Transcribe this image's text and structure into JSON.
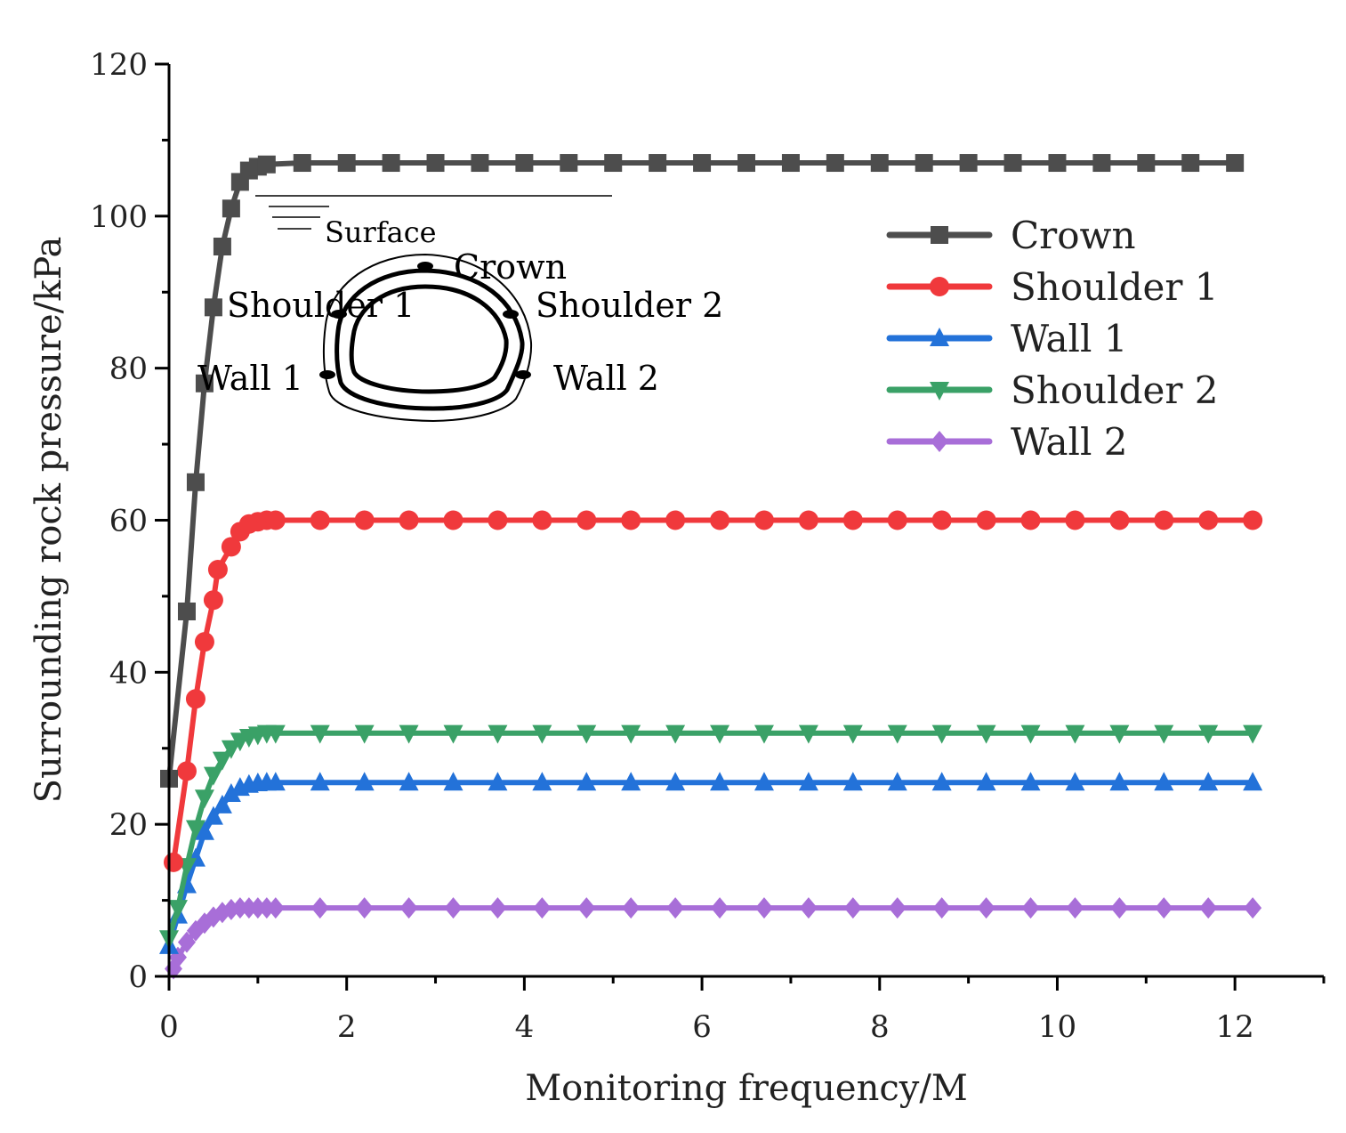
{
  "chart_data": {
    "type": "line",
    "title": "",
    "xlabel": "Monitoring frequency/M",
    "ylabel": "Surrounding rock pressure/kPa",
    "xlim": [
      0,
      13
    ],
    "ylim": [
      0,
      120
    ],
    "xticks": [
      0,
      2,
      4,
      6,
      8,
      10,
      12
    ],
    "yticks": [
      0,
      20,
      40,
      60,
      80,
      100,
      120
    ],
    "xtick_labels": [
      "0",
      "2",
      "4",
      "6",
      "8",
      "10",
      "12"
    ],
    "ytick_labels": [
      "0",
      "20",
      "40",
      "60",
      "80",
      "100",
      "120"
    ],
    "legend_position": "top-right",
    "series": [
      {
        "name": "Crown",
        "color": "#4d4d4d",
        "marker": "square",
        "x": [
          0,
          0.2,
          0.3,
          0.4,
          0.5,
          0.6,
          0.7,
          0.8,
          0.9,
          1.0,
          1.1,
          1.5,
          2.0,
          2.5,
          3.0,
          3.5,
          4.0,
          4.5,
          5.0,
          5.5,
          6.0,
          6.5,
          7.0,
          7.5,
          8.0,
          8.5,
          9.0,
          9.5,
          10.0,
          10.5,
          11.0,
          11.5,
          12.0
        ],
        "y": [
          26,
          48,
          65,
          78,
          88,
          96,
          101,
          104.5,
          106,
          106.5,
          106.8,
          107,
          107,
          107,
          107,
          107,
          107,
          107,
          107,
          107,
          107,
          107,
          107,
          107,
          107,
          107,
          107,
          107,
          107,
          107,
          107,
          107,
          107
        ]
      },
      {
        "name": "Shoulder 1",
        "color": "#f0393c",
        "marker": "circle",
        "x": [
          0.05,
          0.2,
          0.3,
          0.4,
          0.5,
          0.55,
          0.7,
          0.8,
          0.9,
          1.0,
          1.1,
          1.2,
          1.7,
          2.2,
          2.7,
          3.2,
          3.7,
          4.2,
          4.7,
          5.2,
          5.7,
          6.2,
          6.7,
          7.2,
          7.7,
          8.2,
          8.7,
          9.2,
          9.7,
          10.2,
          10.7,
          11.2,
          11.7,
          12.2
        ],
        "y": [
          15,
          27,
          36.5,
          44,
          49.5,
          53.5,
          56.5,
          58.5,
          59.5,
          59.8,
          60,
          60,
          60,
          60,
          60,
          60,
          60,
          60,
          60,
          60,
          60,
          60,
          60,
          60,
          60,
          60,
          60,
          60,
          60,
          60,
          60,
          60,
          60,
          60
        ]
      },
      {
        "name": "Wall 1",
        "color": "#2372d9",
        "marker": "triangle-up",
        "x": [
          0,
          0.1,
          0.2,
          0.3,
          0.4,
          0.5,
          0.6,
          0.7,
          0.8,
          0.9,
          1.0,
          1.1,
          1.2,
          1.7,
          2.2,
          2.7,
          3.2,
          3.7,
          4.2,
          4.7,
          5.2,
          5.7,
          6.2,
          6.7,
          7.2,
          7.7,
          8.2,
          8.7,
          9.2,
          9.7,
          10.2,
          10.7,
          11.2,
          11.7,
          12.2
        ],
        "y": [
          4,
          8,
          12,
          15.5,
          19,
          21,
          22.5,
          24,
          24.8,
          25.2,
          25.4,
          25.5,
          25.5,
          25.5,
          25.5,
          25.5,
          25.5,
          25.5,
          25.5,
          25.5,
          25.5,
          25.5,
          25.5,
          25.5,
          25.5,
          25.5,
          25.5,
          25.5,
          25.5,
          25.5,
          25.5,
          25.5,
          25.5,
          25.5,
          25.5
        ]
      },
      {
        "name": "Shoulder 2",
        "color": "#3aa167",
        "marker": "triangle-down",
        "x": [
          0,
          0.1,
          0.2,
          0.3,
          0.4,
          0.5,
          0.6,
          0.7,
          0.8,
          0.9,
          1.0,
          1.1,
          1.2,
          1.7,
          2.2,
          2.7,
          3.2,
          3.7,
          4.2,
          4.7,
          5.2,
          5.7,
          6.2,
          6.7,
          7.2,
          7.7,
          8.2,
          8.7,
          9.2,
          9.7,
          10.2,
          10.7,
          11.2,
          11.7,
          12.2
        ],
        "y": [
          5,
          9,
          14.5,
          19.5,
          23.5,
          26.5,
          28.5,
          30,
          31,
          31.5,
          31.8,
          32,
          32,
          32,
          32,
          32,
          32,
          32,
          32,
          32,
          32,
          32,
          32,
          32,
          32,
          32,
          32,
          32,
          32,
          32,
          32,
          32,
          32,
          32,
          32
        ]
      },
      {
        "name": "Wall 2",
        "color": "#a86ed8",
        "marker": "diamond",
        "x": [
          0.05,
          0.1,
          0.2,
          0.3,
          0.4,
          0.5,
          0.6,
          0.7,
          0.8,
          0.9,
          1.0,
          1.1,
          1.2,
          1.7,
          2.2,
          2.7,
          3.2,
          3.7,
          4.2,
          4.7,
          5.2,
          5.7,
          6.2,
          6.7,
          7.2,
          7.7,
          8.2,
          8.7,
          9.2,
          9.7,
          10.2,
          10.7,
          11.2,
          11.7,
          12.2
        ],
        "y": [
          1,
          2.5,
          4.5,
          6,
          7,
          7.8,
          8.4,
          8.8,
          9,
          9,
          9,
          9,
          9,
          9,
          9,
          9,
          9,
          9,
          9,
          9,
          9,
          9,
          9,
          9,
          9,
          9,
          9,
          9,
          9,
          9,
          9,
          9,
          9,
          9,
          9
        ]
      }
    ],
    "inset": {
      "surface_label": "Surface",
      "crown_label": "Crown",
      "shoulder1_label": "Shoulder 1",
      "shoulder2_label": "Shoulder 2",
      "wall1_label": "Wall 1",
      "wall2_label": "Wall 2"
    }
  }
}
